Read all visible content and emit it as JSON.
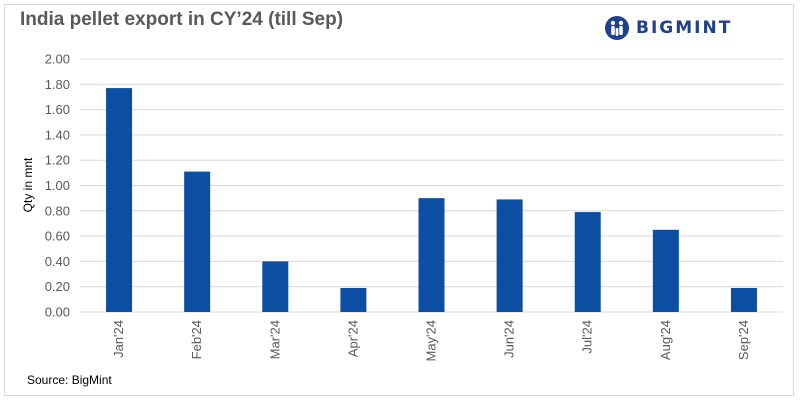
{
  "header": {
    "title": "India pellet export in CY’24 (till Sep)",
    "logo_text": "BIGMINT",
    "logo_icon": "bigmint-logo-icon"
  },
  "footer": {
    "source": "Source: BigMint"
  },
  "colors": {
    "bar": "#0b4ea2",
    "grid": "#d9d9d9",
    "logo": "#1f3f8f"
  },
  "chart_data": {
    "type": "bar",
    "title": "India pellet export in CY’24 (till Sep)",
    "xlabel": "",
    "ylabel": "Qty in mnt",
    "categories": [
      "Jan'24",
      "Feb'24",
      "Mar'24",
      "Apr'24",
      "May'24",
      "Jun'24",
      "Jul'24",
      "Aug'24",
      "Sep'24"
    ],
    "values": [
      1.77,
      1.11,
      0.4,
      0.19,
      0.9,
      0.89,
      0.79,
      0.65,
      0.19
    ],
    "ylim": [
      0,
      2.0
    ],
    "yticks": [
      "0.00",
      "0.20",
      "0.40",
      "0.60",
      "0.80",
      "1.00",
      "1.20",
      "1.40",
      "1.60",
      "1.80",
      "2.00"
    ],
    "grid": true,
    "legend": "none"
  }
}
